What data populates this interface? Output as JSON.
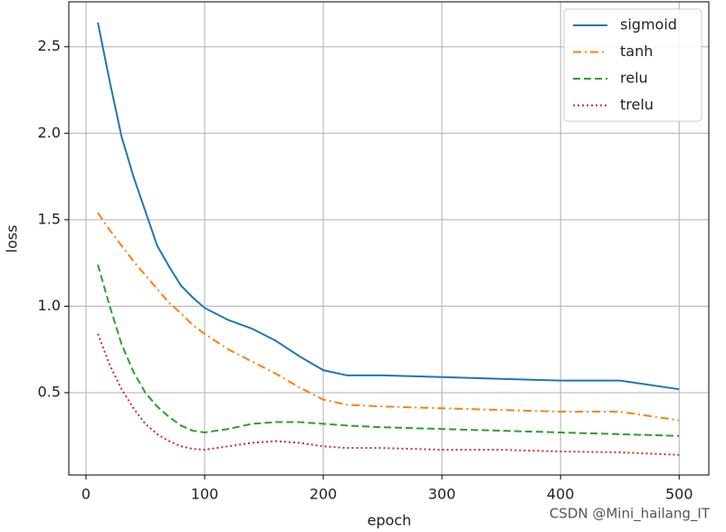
{
  "chart_data": {
    "type": "line",
    "xlabel": "epoch",
    "ylabel": "loss",
    "x": [
      10,
      20,
      30,
      40,
      50,
      60,
      70,
      80,
      90,
      100,
      120,
      140,
      160,
      180,
      200,
      220,
      250,
      300,
      350,
      400,
      450,
      500
    ],
    "series": [
      {
        "name": "sigmoid",
        "color": "#1f77b4",
        "linestyle": "solid",
        "values": [
          2.64,
          2.3,
          1.98,
          1.75,
          1.55,
          1.35,
          1.23,
          1.12,
          1.05,
          0.99,
          0.92,
          0.87,
          0.8,
          0.71,
          0.63,
          0.6,
          0.6,
          0.59,
          0.58,
          0.57,
          0.57,
          0.52
        ]
      },
      {
        "name": "tanh",
        "color": "#ff7f0e",
        "linestyle": "dashdot",
        "values": [
          1.54,
          1.44,
          1.35,
          1.26,
          1.18,
          1.1,
          1.02,
          0.96,
          0.89,
          0.84,
          0.75,
          0.68,
          0.61,
          0.53,
          0.46,
          0.43,
          0.42,
          0.41,
          0.4,
          0.39,
          0.39,
          0.34
        ]
      },
      {
        "name": "relu",
        "color": "#2ca02c",
        "linestyle": "dashed",
        "values": [
          1.24,
          1.0,
          0.78,
          0.62,
          0.5,
          0.42,
          0.36,
          0.31,
          0.28,
          0.27,
          0.29,
          0.32,
          0.33,
          0.33,
          0.32,
          0.31,
          0.3,
          0.29,
          0.28,
          0.27,
          0.26,
          0.25
        ]
      },
      {
        "name": "trelu",
        "color": "#d62728",
        "linestyle": "dotted",
        "values": [
          0.84,
          0.66,
          0.52,
          0.41,
          0.32,
          0.26,
          0.22,
          0.19,
          0.175,
          0.17,
          0.19,
          0.21,
          0.22,
          0.21,
          0.19,
          0.18,
          0.18,
          0.17,
          0.17,
          0.16,
          0.155,
          0.14
        ]
      }
    ],
    "xlim": [
      -14.5,
      525
    ],
    "ylim": [
      0.024,
      2.76
    ],
    "xticks": [
      0,
      100,
      200,
      300,
      400,
      500
    ],
    "yticks": [
      0.5,
      {
        "value": 1,
        "label": "1.0"
      },
      1.5,
      {
        "value": 2,
        "label": "2.0"
      },
      2.5
    ],
    "grid": true,
    "legend": "upper right",
    "watermark": "CSDN @Mini_hailang_IT"
  }
}
